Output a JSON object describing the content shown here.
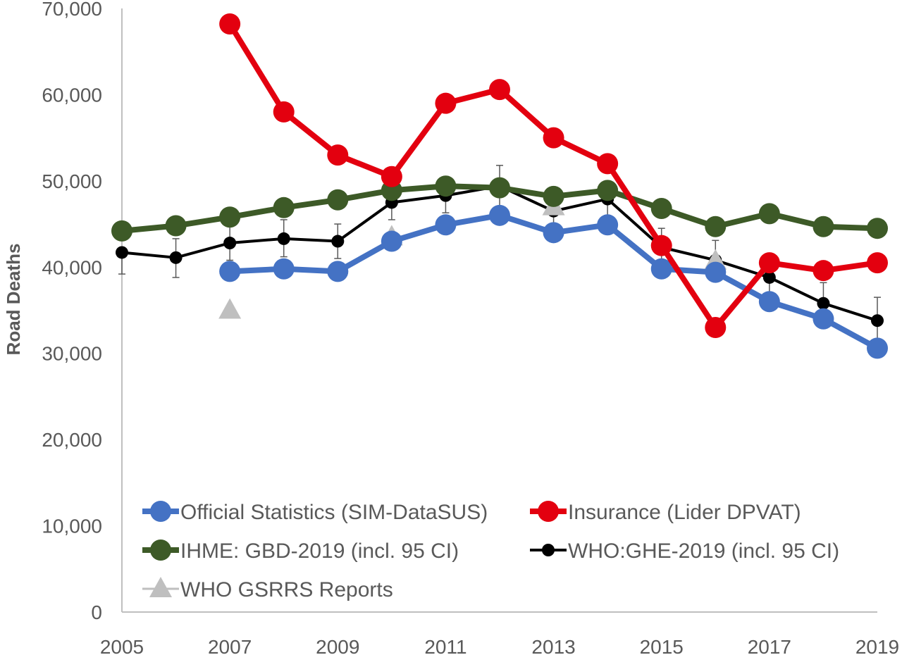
{
  "chart_data": {
    "type": "line",
    "title": "",
    "xlabel": "",
    "ylabel": "Road Deaths",
    "xlim": [
      2005,
      2019
    ],
    "ylim": [
      0,
      70000
    ],
    "x_ticks": [
      "2005",
      "2007",
      "2009",
      "2011",
      "2013",
      "2015",
      "2017",
      "2019"
    ],
    "y_ticks": [
      "0",
      "10,000",
      "20,000",
      "30,000",
      "40,000",
      "50,000",
      "60,000",
      "70,000"
    ],
    "grid": false,
    "legend_position": "bottom",
    "series": [
      {
        "name": "Official Statistics (SIM-DataSUS)",
        "color": "#4472c4",
        "marker": "circle",
        "x": [
          2007,
          2008,
          2009,
          2010,
          2011,
          2012,
          2013,
          2014,
          2015,
          2016,
          2017,
          2018,
          2019
        ],
        "values": [
          39500,
          39800,
          39500,
          43000,
          44900,
          46000,
          44000,
          44900,
          39800,
          39400,
          36000,
          34000,
          30600
        ]
      },
      {
        "name": "Insurance (Lider DPVAT)",
        "color": "#e3000f",
        "marker": "circle",
        "x": [
          2007,
          2008,
          2009,
          2010,
          2011,
          2012,
          2013,
          2014,
          2015,
          2016,
          2017,
          2018,
          2019
        ],
        "values": [
          68200,
          58000,
          53000,
          50500,
          59000,
          60600,
          55000,
          52000,
          42500,
          33000,
          40500,
          39600,
          40500
        ]
      },
      {
        "name": "IHME: GBD-2019 (incl. 95 CI)",
        "color": "#3d5a27",
        "marker": "circle",
        "x": [
          2005,
          2006,
          2007,
          2008,
          2009,
          2010,
          2011,
          2012,
          2013,
          2014,
          2015,
          2016,
          2017,
          2018,
          2019
        ],
        "values": [
          44200,
          44800,
          45800,
          46900,
          47800,
          48900,
          49400,
          49200,
          48200,
          48900,
          46800,
          44700,
          46200,
          44700,
          44500
        ]
      },
      {
        "name": "WHO:GHE-2019 (incl. 95 CI)",
        "color": "#000000",
        "marker": "small-circle",
        "x": [
          2005,
          2006,
          2007,
          2008,
          2009,
          2010,
          2011,
          2012,
          2013,
          2014,
          2015,
          2016,
          2017,
          2018,
          2019
        ],
        "values": [
          41700,
          41100,
          42800,
          43300,
          43000,
          47500,
          48300,
          49400,
          46500,
          47900,
          42300,
          40800,
          38800,
          35800,
          33800
        ],
        "error_high": [
          null,
          43300,
          44800,
          45500,
          45000,
          49000,
          49500,
          51800,
          48500,
          49600,
          44500,
          43100,
          40500,
          38200,
          36500
        ],
        "error_low": [
          39200,
          38800,
          40800,
          41200,
          41000,
          45500,
          46300,
          47000,
          44500,
          46000,
          40000,
          38500,
          37000,
          33500,
          31500
        ]
      },
      {
        "name": "WHO GSRRS Reports",
        "color": "#bfbfbf",
        "marker": "triangle",
        "line": false,
        "x": [
          2007,
          2010,
          2013,
          2016
        ],
        "values": [
          35000,
          43500,
          47000,
          40700
        ]
      }
    ]
  }
}
